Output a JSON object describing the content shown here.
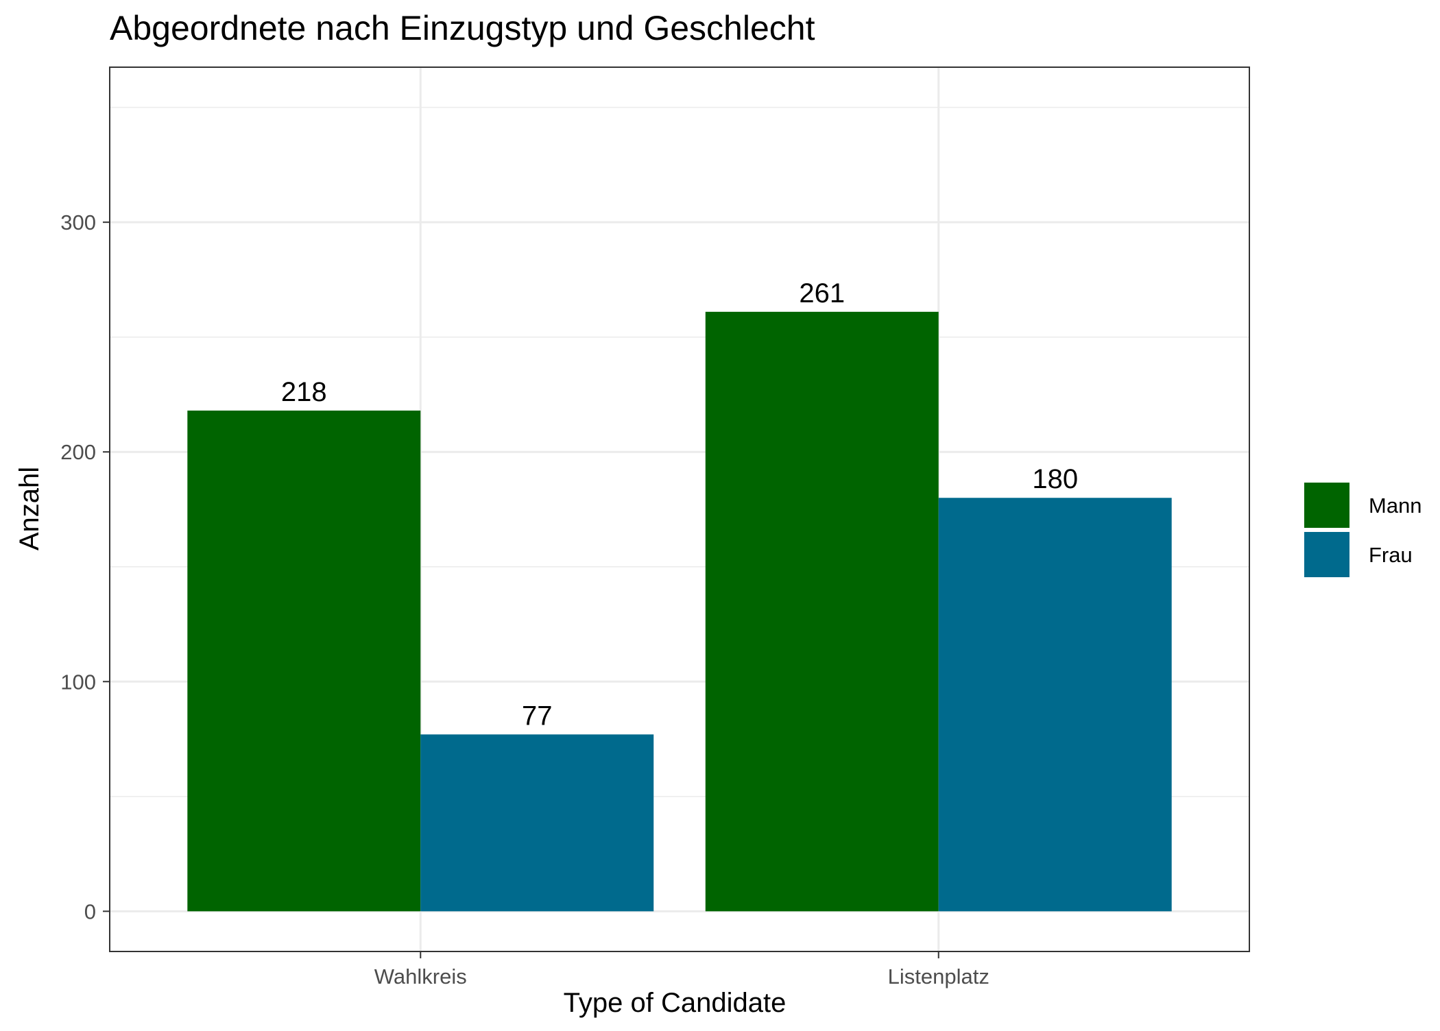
{
  "chart_data": {
    "type": "bar",
    "title": "Abgeordnete nach Einzugstyp und Geschlecht",
    "xlabel": "Type of Candidate",
    "ylabel": "Anzahl",
    "categories": [
      "Wahlkreis",
      "Listenplatz"
    ],
    "series": [
      {
        "name": "Mann",
        "color": "#006400",
        "values": [
          218,
          261
        ]
      },
      {
        "name": "Frau",
        "color": "#006a8d",
        "values": [
          77,
          180
        ]
      }
    ],
    "ylim": [
      -17.5,
      367.5
    ],
    "yticks": [
      0,
      100,
      200,
      300
    ],
    "grid": true,
    "legend": "right",
    "data_labels": true
  }
}
